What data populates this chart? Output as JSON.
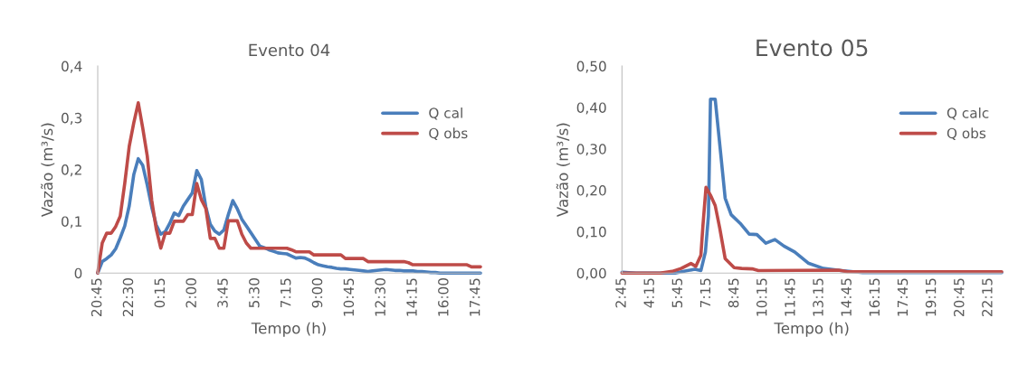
{
  "chart_data": [
    {
      "type": "line",
      "title": "Evento 04",
      "xlabel": "Tempo (h)",
      "ylabel": "Vazão (m³/s)",
      "categories": [
        "20:45",
        null,
        null,
        null,
        null,
        null,
        null,
        "22:30",
        null,
        null,
        null,
        null,
        null,
        null,
        "0:15",
        null,
        null,
        null,
        null,
        null,
        null,
        "2:00",
        null,
        null,
        null,
        null,
        null,
        null,
        "3:45",
        null,
        null,
        null,
        null,
        null,
        null,
        "5:30",
        null,
        null,
        null,
        null,
        null,
        null,
        "7:15",
        null,
        null,
        null,
        null,
        null,
        null,
        "9:00",
        null,
        null,
        null,
        null,
        null,
        null,
        "10:45",
        null,
        null,
        null,
        null,
        null,
        null,
        "12:30",
        null,
        null,
        null,
        null,
        null,
        null,
        "14:15",
        null,
        null,
        null,
        null,
        null,
        null,
        "16:00",
        null,
        null,
        null,
        null,
        null,
        null,
        "17:45",
        null
      ],
      "ylim": [
        0,
        0.4
      ],
      "yticks": [
        {
          "value": 0,
          "label": "0"
        },
        {
          "value": 0.1,
          "label": "0,1"
        },
        {
          "value": 0.2,
          "label": "0,2"
        },
        {
          "value": 0.3,
          "label": "0,3"
        },
        {
          "value": 0.4,
          "label": "0,4"
        }
      ],
      "grid": false,
      "legend": "top right",
      "marker": "none",
      "line_style": "solid",
      "series": [
        {
          "name": "Q cal",
          "color": "#4a7ebb",
          "values": [
            0,
            0.022,
            0.028,
            0.035,
            0.047,
            0.068,
            0.091,
            0.13,
            0.19,
            0.221,
            0.208,
            0.17,
            0.127,
            0.093,
            0.075,
            0.08,
            0.096,
            0.116,
            0.111,
            0.129,
            0.142,
            0.155,
            0.198,
            0.181,
            0.128,
            0.094,
            0.081,
            0.075,
            0.083,
            0.113,
            0.14,
            0.124,
            0.104,
            0.091,
            0.078,
            0.065,
            0.052,
            0.049,
            0.045,
            0.042,
            0.039,
            0.038,
            0.037,
            0.033,
            0.029,
            0.03,
            0.029,
            0.025,
            0.02,
            0.016,
            0.014,
            0.012,
            0.011,
            0.009,
            0.008,
            0.008,
            0.007,
            0.006,
            0.005,
            0.004,
            0.003,
            0.004,
            0.005,
            0.006,
            0.007,
            0.006,
            0.005,
            0.005,
            0.004,
            0.004,
            0.004,
            0.003,
            0.003,
            0.002,
            0.001,
            0.001,
            0,
            0,
            0,
            0,
            0,
            0,
            0,
            0,
            0,
            0
          ]
        },
        {
          "name": "Q obs",
          "color": "#be4b48",
          "values": [
            0,
            0.058,
            0.077,
            0.077,
            0.09,
            0.11,
            0.173,
            0.245,
            0.29,
            0.329,
            0.28,
            0.226,
            0.14,
            0.085,
            0.048,
            0.077,
            0.077,
            0.1,
            0.1,
            0.1,
            0.113,
            0.113,
            0.173,
            0.142,
            0.125,
            0.067,
            0.067,
            0.048,
            0.048,
            0.101,
            0.101,
            0.101,
            0.075,
            0.058,
            0.048,
            0.048,
            0.048,
            0.048,
            0.048,
            0.048,
            0.048,
            0.048,
            0.048,
            0.045,
            0.041,
            0.041,
            0.041,
            0.041,
            0.035,
            0.035,
            0.035,
            0.035,
            0.035,
            0.035,
            0.035,
            0.028,
            0.028,
            0.028,
            0.028,
            0.028,
            0.022,
            0.022,
            0.022,
            0.022,
            0.022,
            0.022,
            0.022,
            0.022,
            0.022,
            0.02,
            0.016,
            0.016,
            0.016,
            0.016,
            0.016,
            0.016,
            0.016,
            0.016,
            0.016,
            0.016,
            0.016,
            0.016,
            0.016,
            0.012,
            0.012,
            0.012
          ]
        }
      ]
    },
    {
      "type": "line",
      "title": "Evento 05",
      "xlabel": "Tempo (h)",
      "ylabel": "Vazão (m³/s)",
      "xlim": [
        2.75,
        22.96
      ],
      "xticks": [
        {
          "value": 2.75,
          "label": "2:45"
        },
        {
          "value": 4.25,
          "label": "4:15"
        },
        {
          "value": 5.75,
          "label": "5:45"
        },
        {
          "value": 7.25,
          "label": "7:15"
        },
        {
          "value": 8.75,
          "label": "8:45"
        },
        {
          "value": 10.25,
          "label": "10:15"
        },
        {
          "value": 11.75,
          "label": "11:45"
        },
        {
          "value": 13.25,
          "label": "13:15"
        },
        {
          "value": 14.75,
          "label": "14:45"
        },
        {
          "value": 16.25,
          "label": "16:15"
        },
        {
          "value": 17.75,
          "label": "17:45"
        },
        {
          "value": 19.25,
          "label": "19:15"
        },
        {
          "value": 20.75,
          "label": "20:45"
        },
        {
          "value": 22.25,
          "label": "22:15"
        }
      ],
      "ylim": [
        0,
        0.5
      ],
      "yticks": [
        {
          "value": 0,
          "label": "0,00"
        },
        {
          "value": 0.1,
          "label": "0,10"
        },
        {
          "value": 0.2,
          "label": "0,20"
        },
        {
          "value": 0.3,
          "label": "0,30"
        },
        {
          "value": 0.4,
          "label": "0,40"
        },
        {
          "value": 0.5,
          "label": "0,50"
        }
      ],
      "grid": false,
      "legend": "top right",
      "marker": "none",
      "line_style": "solid",
      "series": [
        {
          "name": "Q calc",
          "color": "#4a7ebb",
          "x": [
            2.75,
            3.49,
            5.58,
            6.23,
            6.63,
            6.95,
            7.19,
            7.35,
            7.46,
            7.71,
            8.0,
            8.24,
            8.56,
            9.04,
            9.52,
            9.93,
            10.41,
            10.89,
            11.37,
            11.94,
            12.66,
            13.47,
            14.43,
            15.56,
            22.96
          ],
          "values": [
            0.002,
            0,
            0,
            0.006,
            0.009,
            0.006,
            0.051,
            0.138,
            0.42,
            0.42,
            0.29,
            0.181,
            0.141,
            0.12,
            0.094,
            0.093,
            0.072,
            0.081,
            0.065,
            0.051,
            0.024,
            0.011,
            0.006,
            0.001,
            0.001
          ]
        },
        {
          "name": "Q obs",
          "color": "#be4b48",
          "x": [
            2.75,
            4.78,
            5.42,
            5.9,
            6.42,
            6.68,
            6.95,
            7.06,
            7.22,
            7.46,
            7.71,
            7.95,
            8.24,
            8.72,
            9.12,
            9.68,
            10.01,
            14.27,
            14.75,
            22.96
          ],
          "values": [
            0,
            0,
            0.004,
            0.011,
            0.023,
            0.016,
            0.043,
            0.116,
            0.207,
            0.188,
            0.163,
            0.109,
            0.035,
            0.013,
            0.011,
            0.01,
            0.006,
            0.007,
            0.003,
            0.003
          ]
        }
      ]
    }
  ]
}
